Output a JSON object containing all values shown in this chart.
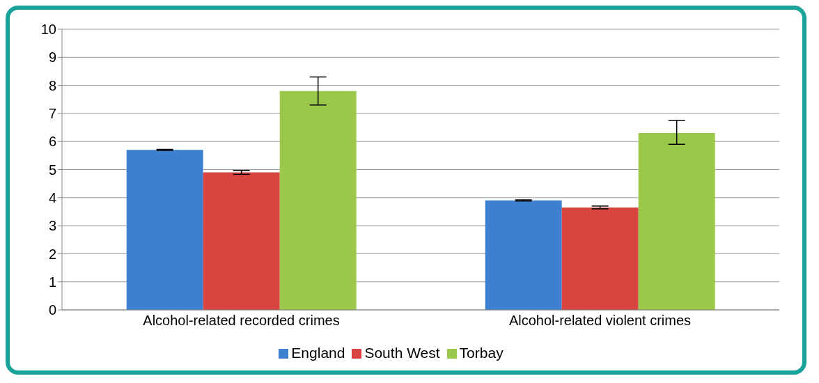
{
  "chart_data": {
    "type": "bar",
    "categories": [
      "Alcohol-related recorded crimes",
      "Alcohol-related violent crimes"
    ],
    "series": [
      {
        "name": "England",
        "color": "#3d7fd0",
        "values": [
          5.7,
          3.9
        ],
        "errors": [
          0.02,
          0.02
        ]
      },
      {
        "name": "South West",
        "color": "#d94441",
        "values": [
          4.9,
          3.65
        ],
        "errors": [
          0.07,
          0.05
        ]
      },
      {
        "name": "Torbay",
        "color": "#9bc84a",
        "values": [
          7.8,
          6.3
        ],
        "errors": [
          [
            7.3,
            8.3
          ],
          [
            5.9,
            6.75
          ]
        ]
      }
    ],
    "ylim": [
      0,
      10
    ],
    "yticks": [
      0,
      1,
      2,
      3,
      4,
      5,
      6,
      7,
      8,
      9,
      10
    ],
    "grid": "y",
    "legend": "bottom"
  }
}
